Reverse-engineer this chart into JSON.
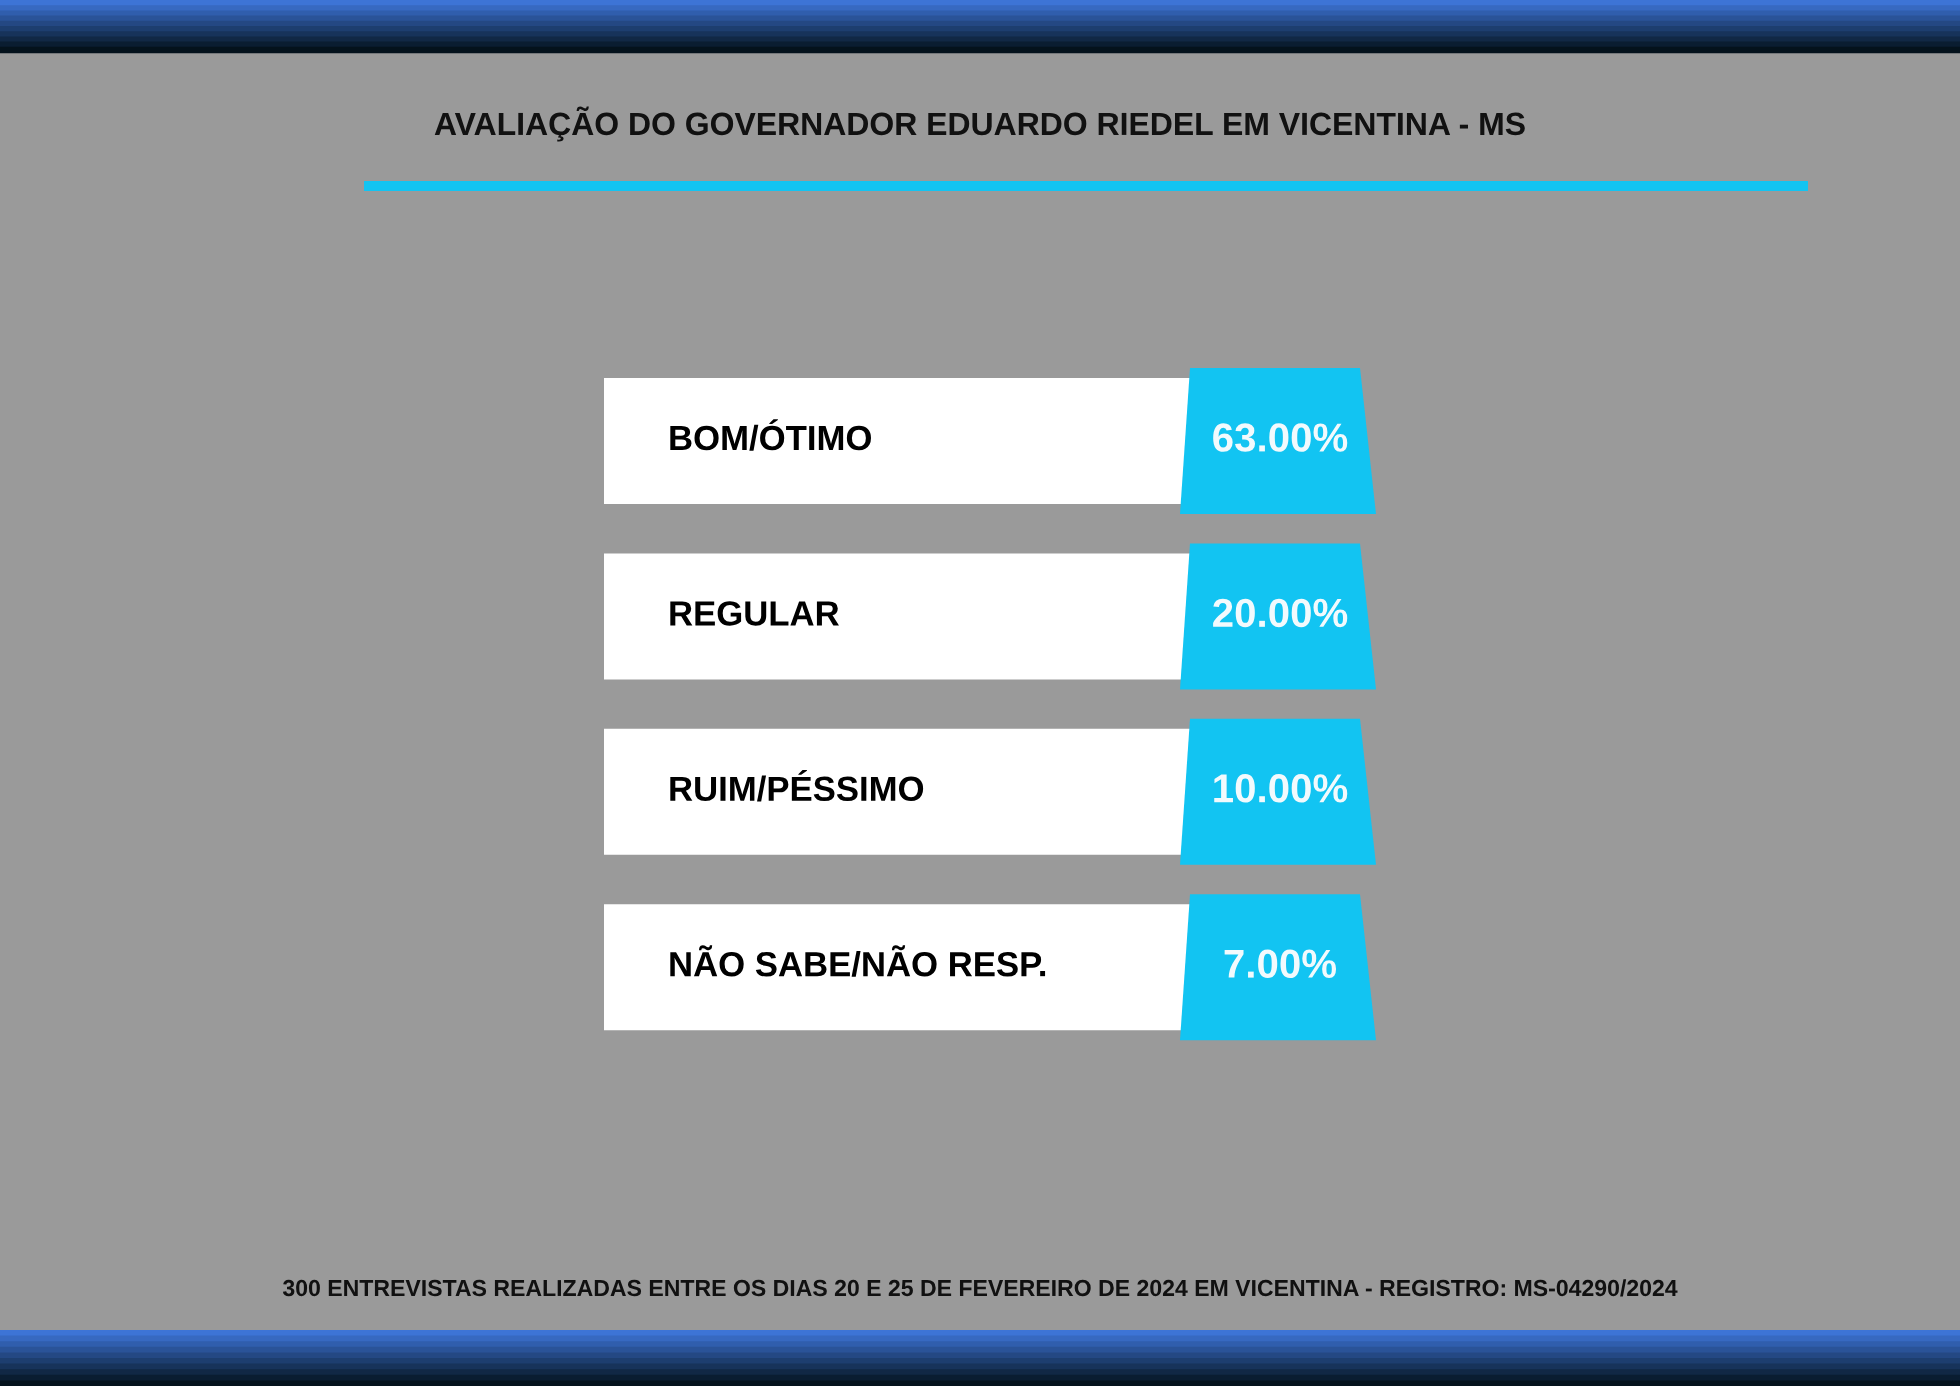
{
  "chart_data": {
    "type": "other",
    "title": "AVALIAÇÃO DO GOVERNADOR EDUARDO RIEDEL EM VICENTINA - MS",
    "categories": [
      "BOM/ÓTIMO",
      "REGULAR",
      "RUIM/PÉSSIMO",
      "NÃO SABE/NÃO RESP."
    ],
    "values": [
      63,
      20,
      10,
      7
    ],
    "value_labels": [
      "63.00%",
      "20.00%",
      "10.00%",
      "7.00%"
    ],
    "annotations": [
      "300 ENTREVISTAS REALIZADAS ENTRE OS DIAS 20 E 25 DE FEVEREIRO DE 2024 EM VICENTINA - REGISTRO: MS-04290/2024"
    ]
  }
}
